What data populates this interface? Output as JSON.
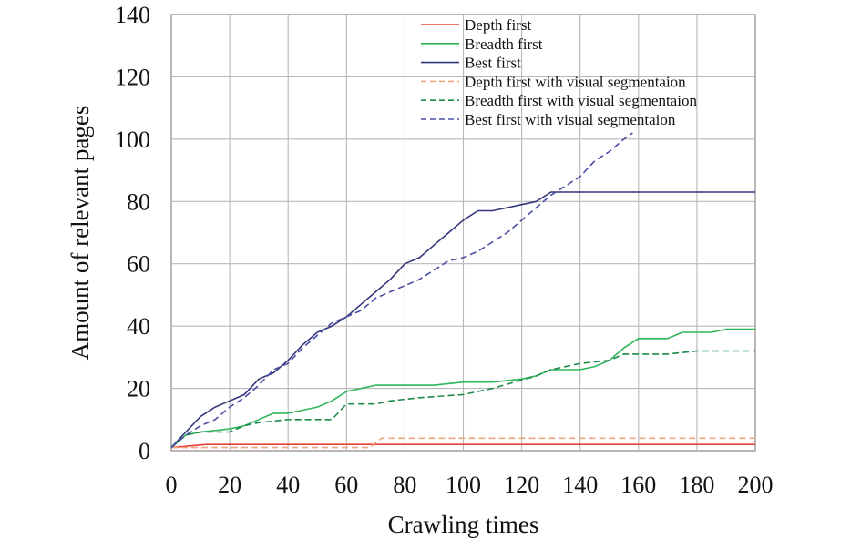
{
  "chart_data": {
    "type": "line",
    "title": "",
    "xlabel": "Crawling times",
    "ylabel": "Amount of relevant pages",
    "xlim": [
      0,
      200
    ],
    "ylim": [
      0,
      140
    ],
    "xticks": [
      0,
      20,
      40,
      60,
      80,
      100,
      120,
      140,
      160,
      180,
      200
    ],
    "yticks": [
      0,
      20,
      40,
      60,
      80,
      100,
      120,
      140
    ],
    "grid": true,
    "legend_position": "top-right",
    "series": [
      {
        "name": "Depth first",
        "color": "#e8423a",
        "dash": "solid",
        "points": [
          [
            0,
            1
          ],
          [
            12,
            2
          ],
          [
            200,
            2
          ]
        ]
      },
      {
        "name": "Breadth first",
        "color": "#2fb55a",
        "dash": "solid",
        "points": [
          [
            0,
            1
          ],
          [
            5,
            5
          ],
          [
            10,
            6
          ],
          [
            20,
            7
          ],
          [
            25,
            8
          ],
          [
            30,
            10
          ],
          [
            35,
            12
          ],
          [
            40,
            12
          ],
          [
            45,
            13
          ],
          [
            50,
            14
          ],
          [
            55,
            16
          ],
          [
            60,
            19
          ],
          [
            65,
            20
          ],
          [
            70,
            21
          ],
          [
            80,
            21
          ],
          [
            90,
            21
          ],
          [
            100,
            22
          ],
          [
            110,
            22
          ],
          [
            120,
            23
          ],
          [
            125,
            24
          ],
          [
            130,
            26
          ],
          [
            140,
            26
          ],
          [
            145,
            27
          ],
          [
            150,
            29
          ],
          [
            155,
            33
          ],
          [
            160,
            36
          ],
          [
            170,
            36
          ],
          [
            175,
            38
          ],
          [
            185,
            38
          ],
          [
            190,
            39
          ],
          [
            200,
            39
          ]
        ]
      },
      {
        "name": "Best first",
        "color": "#34367a",
        "dash": "solid",
        "points": [
          [
            0,
            1
          ],
          [
            5,
            6
          ],
          [
            10,
            11
          ],
          [
            15,
            14
          ],
          [
            20,
            16
          ],
          [
            25,
            18
          ],
          [
            30,
            23
          ],
          [
            35,
            25
          ],
          [
            40,
            29
          ],
          [
            45,
            34
          ],
          [
            50,
            38
          ],
          [
            55,
            40
          ],
          [
            60,
            43
          ],
          [
            65,
            47
          ],
          [
            70,
            51
          ],
          [
            75,
            55
          ],
          [
            80,
            60
          ],
          [
            85,
            62
          ],
          [
            90,
            66
          ],
          [
            95,
            70
          ],
          [
            100,
            74
          ],
          [
            105,
            77
          ],
          [
            110,
            77
          ],
          [
            115,
            78
          ],
          [
            120,
            79
          ],
          [
            125,
            80
          ],
          [
            130,
            83
          ],
          [
            140,
            83
          ],
          [
            160,
            83
          ],
          [
            180,
            83
          ],
          [
            200,
            83
          ]
        ]
      },
      {
        "name": "Depth first with visual segmentaion",
        "color": "#f3a57f",
        "dash": "dashed",
        "points": [
          [
            0,
            1
          ],
          [
            12,
            1
          ],
          [
            68,
            1
          ],
          [
            72,
            4
          ],
          [
            200,
            4
          ]
        ]
      },
      {
        "name": "Breadth first with visual segmentaion",
        "color": "#1d8a4a",
        "dash": "dashed",
        "points": [
          [
            0,
            1
          ],
          [
            5,
            5
          ],
          [
            10,
            6
          ],
          [
            20,
            6
          ],
          [
            25,
            8
          ],
          [
            30,
            9
          ],
          [
            40,
            10
          ],
          [
            55,
            10
          ],
          [
            60,
            15
          ],
          [
            70,
            15
          ],
          [
            75,
            16
          ],
          [
            85,
            17
          ],
          [
            100,
            18
          ],
          [
            110,
            20
          ],
          [
            125,
            24
          ],
          [
            130,
            26
          ],
          [
            140,
            28
          ],
          [
            150,
            29
          ],
          [
            155,
            31
          ],
          [
            170,
            31
          ],
          [
            180,
            32
          ],
          [
            200,
            32
          ]
        ]
      },
      {
        "name": "Best first with visual segmentaion",
        "color": "#4a4fa6",
        "dash": "dashed",
        "points": [
          [
            0,
            1
          ],
          [
            5,
            5
          ],
          [
            10,
            8
          ],
          [
            15,
            10
          ],
          [
            20,
            14
          ],
          [
            25,
            17
          ],
          [
            30,
            21
          ],
          [
            35,
            26
          ],
          [
            40,
            28
          ],
          [
            45,
            33
          ],
          [
            50,
            37
          ],
          [
            55,
            41
          ],
          [
            60,
            43
          ],
          [
            65,
            45
          ],
          [
            70,
            49
          ],
          [
            75,
            51
          ],
          [
            80,
            53
          ],
          [
            85,
            55
          ],
          [
            90,
            58
          ],
          [
            95,
            61
          ],
          [
            100,
            62
          ],
          [
            105,
            64
          ],
          [
            110,
            67
          ],
          [
            115,
            70
          ],
          [
            120,
            74
          ],
          [
            125,
            78
          ],
          [
            130,
            82
          ],
          [
            135,
            85
          ],
          [
            140,
            88
          ],
          [
            145,
            93
          ],
          [
            150,
            96
          ],
          [
            155,
            100
          ],
          [
            158,
            102
          ]
        ]
      }
    ]
  }
}
